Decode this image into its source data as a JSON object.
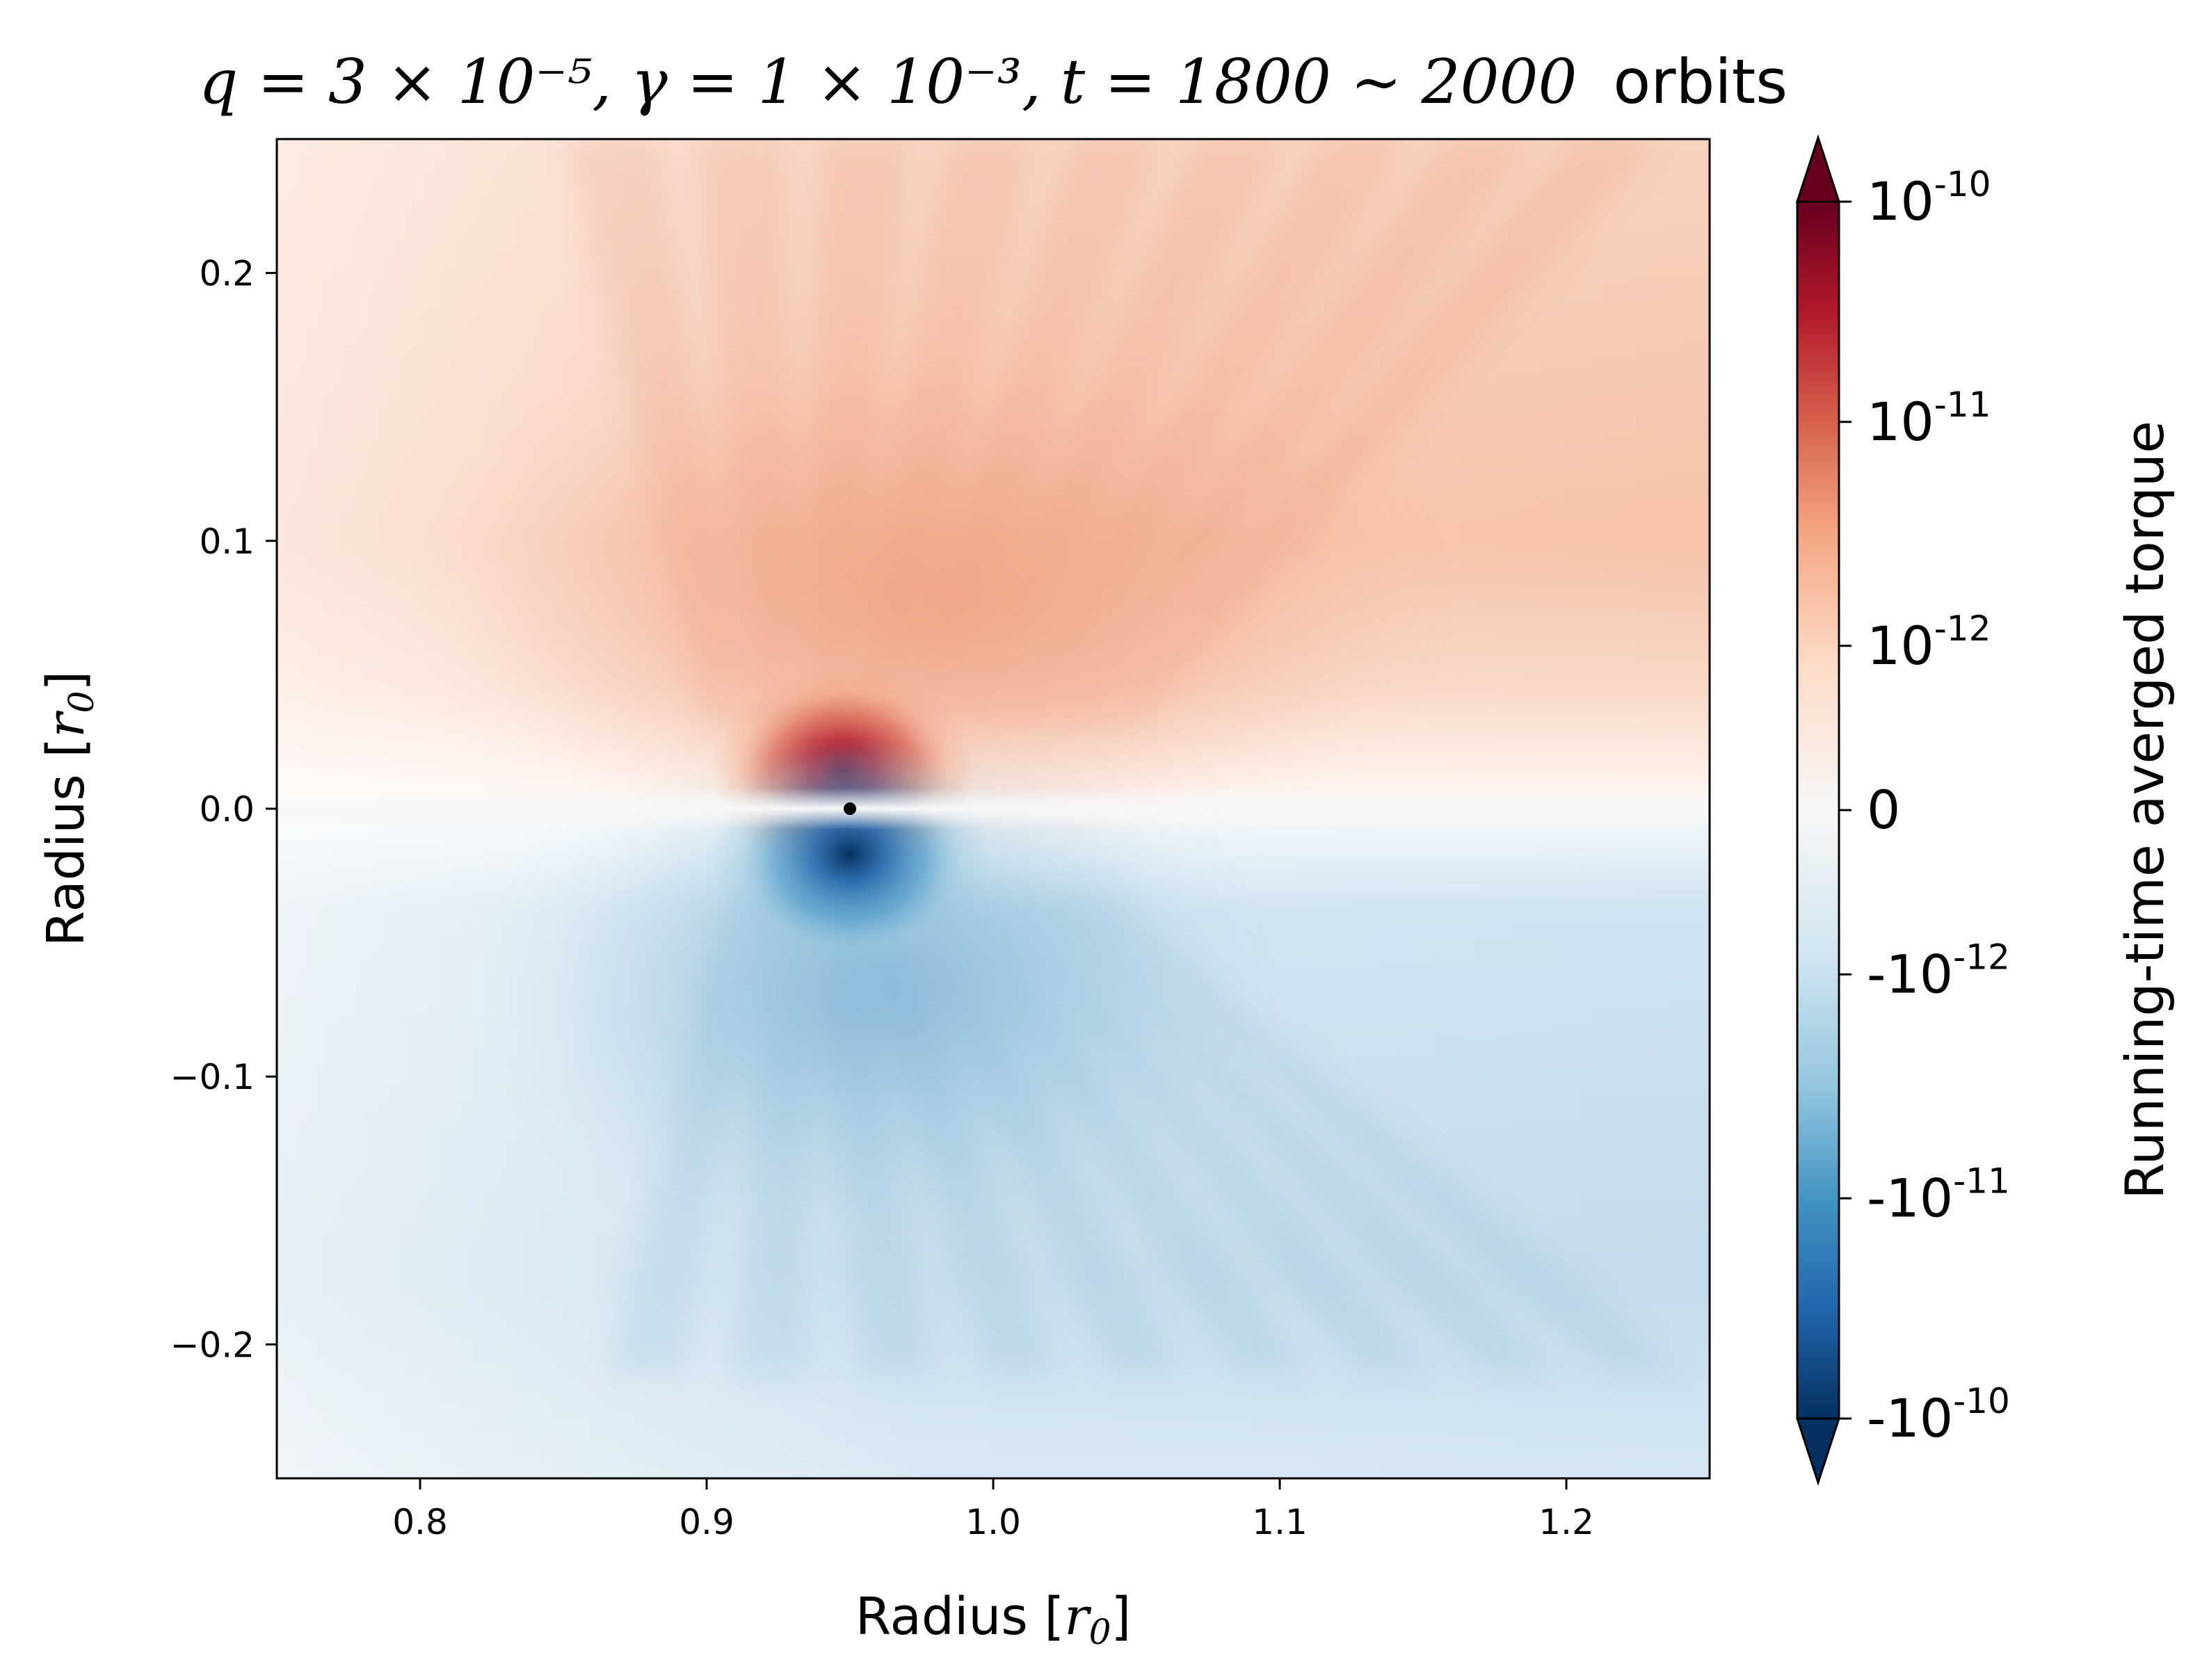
{
  "chart_data": {
    "type": "heatmap",
    "title": {
      "math": "q = 3 × 10⁻⁵, γ = 1 × 10⁻³, t = 1800 ∼ 2000",
      "suffix": "orbits"
    },
    "xlabel": {
      "text": "Radius [",
      "math": "r",
      "sub": "0",
      "close": "]"
    },
    "ylabel": {
      "text": "Radius [",
      "math": "r",
      "sub": "0",
      "close": "]"
    },
    "xlim": [
      0.75,
      1.25
    ],
    "ylim": [
      -0.25,
      0.25
    ],
    "xticks": [
      0.8,
      0.9,
      1.0,
      1.1,
      1.2
    ],
    "xtick_labels": [
      "0.8",
      "0.9",
      "1.0",
      "1.1",
      "1.2"
    ],
    "yticks": [
      0.2,
      0.1,
      0.0,
      -0.1,
      -0.2
    ],
    "ytick_labels": [
      "0.2",
      "0.1",
      "0.0",
      "−0.1",
      "−0.2"
    ],
    "colormap": "RdBu_r",
    "planet_marker": {
      "x": 0.95,
      "y": 0.0,
      "color": "#000000"
    },
    "colorbar": {
      "label": "Running-time averged torque",
      "extend": "both",
      "scale": "symlog",
      "ticks": [
        {
          "base": "10",
          "exp": "-10",
          "value": 1e-10
        },
        {
          "base": "10",
          "exp": "-11",
          "value": 1e-11
        },
        {
          "base": "10",
          "exp": "-12",
          "value": 1e-12
        },
        {
          "base": "0",
          "exp": "",
          "value": 0
        },
        {
          "base": "-10",
          "exp": "-12",
          "value": -1e-12
        },
        {
          "base": "-10",
          "exp": "-11",
          "value": -1e-11
        },
        {
          "base": "-10",
          "exp": "-10",
          "value": -1e-10
        }
      ]
    },
    "colors": {
      "max_red": "#67001f",
      "red": "#b2182b",
      "light_red": "#f4a582",
      "pale_red": "#fbe0d2",
      "white": "#f7f7f7",
      "pale_blue": "#dde9f2",
      "light_blue": "#92c5de",
      "blue": "#2166ac",
      "max_blue": "#053061"
    }
  }
}
